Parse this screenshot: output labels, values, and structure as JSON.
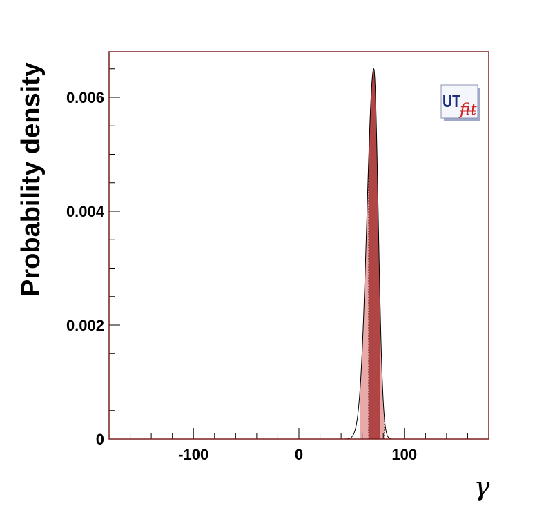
{
  "chart_data": {
    "type": "area",
    "title": "",
    "xlabel": "γ",
    "ylabel": "Probability density",
    "xlim": [
      -180,
      180
    ],
    "ylim": [
      0,
      0.0068
    ],
    "x_ticks": [
      -100,
      0,
      100
    ],
    "x_tick_labels": [
      "-100",
      "0",
      "100"
    ],
    "y_ticks": [
      0,
      0.002,
      0.004,
      0.006
    ],
    "y_tick_labels": [
      "0",
      "0.002",
      "0.004",
      "0.006"
    ],
    "grid": false,
    "distribution": {
      "mode": 71,
      "peak": 0.0065,
      "sigma_left": 6.5,
      "sigma_right": 4.2
    },
    "intervals": {
      "p68": [
        66,
        77
      ],
      "p95": [
        58,
        81
      ]
    },
    "colors": {
      "p68": "#b04545",
      "p95": "#e8a9a9",
      "frame": "#7a1f1f",
      "curve": "#000000"
    },
    "logo": {
      "text_main": "UT",
      "text_sub": "fit",
      "main_color": "#1f2e7a",
      "sub_color": "#cc2222"
    }
  }
}
